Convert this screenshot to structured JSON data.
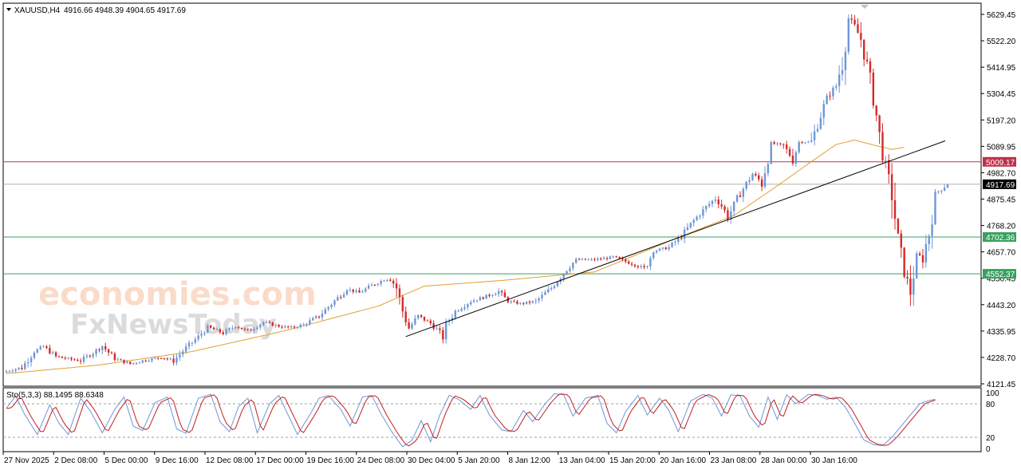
{
  "header": {
    "symbol": "XAUUSD,H4",
    "ohlc": "4916.66 4948.39 4904.65 4917.69"
  },
  "indicator": {
    "label": "Sto(5,3,3) 88.1495 88.6348",
    "levels": [
      "100",
      "80",
      "20",
      "0"
    ]
  },
  "watermark": {
    "line1": "economies.com",
    "line2": "FxNewsToday"
  },
  "colors": {
    "bull": "#6f96d6",
    "bear": "#d42a2a",
    "ma": "#e0a030",
    "resistance": "#c0304a",
    "support": "#3aa060",
    "price_line": "#b0b0b0",
    "trendline": "#000000",
    "stoch_main": "#6f96d6",
    "stoch_signal": "#c02020"
  },
  "chart_data": {
    "type": "candlestick",
    "y_range": [
      4100,
      5650
    ],
    "y_ticks": [
      "5629.45",
      "5522.20",
      "5414.95",
      "5304.45",
      "5197.20",
      "5089.95",
      "4982.70",
      "4875.45",
      "4768.20",
      "4657.70",
      "4550.45",
      "4443.20",
      "4335.95",
      "4228.70",
      "4121.45"
    ],
    "x_ticks": [
      "27 Nov 2025",
      "2 Dec 08:00",
      "5 Dec 00:00",
      "9 Dec 16:00",
      "12 Dec 08:00",
      "17 Dec 00:00",
      "19 Dec 16:00",
      "24 Dec 08:00",
      "30 Dec 04:00",
      "5 Jan 20:00",
      "8 Jan 12:00",
      "13 Jan 04:00",
      "15 Jan 20:00",
      "20 Jan 16:00",
      "23 Jan 08:00",
      "28 Jan 00:00",
      "30 Jan 16:00"
    ],
    "levels": [
      {
        "label": "5009.17",
        "value": 5009.17,
        "kind": "resistance"
      },
      {
        "label": "4917.69",
        "value": 4917.69,
        "kind": "current"
      },
      {
        "label": "4702.36",
        "value": 4702.36,
        "kind": "support"
      },
      {
        "label": "4552.37",
        "value": 4552.37,
        "kind": "support"
      }
    ],
    "close_path": [
      [
        0,
        4155
      ],
      [
        5,
        4170
      ],
      [
        9,
        4235
      ],
      [
        12,
        4255
      ],
      [
        16,
        4215
      ],
      [
        20,
        4205
      ],
      [
        24,
        4198
      ],
      [
        28,
        4230
      ],
      [
        31,
        4258
      ],
      [
        35,
        4205
      ],
      [
        40,
        4185
      ],
      [
        45,
        4200
      ],
      [
        50,
        4212
      ],
      [
        54,
        4198
      ],
      [
        58,
        4250
      ],
      [
        62,
        4295
      ],
      [
        65,
        4335
      ],
      [
        70,
        4310
      ],
      [
        74,
        4340
      ],
      [
        78,
        4318
      ],
      [
        83,
        4355
      ],
      [
        88,
        4338
      ],
      [
        92,
        4332
      ],
      [
        96,
        4345
      ],
      [
        101,
        4380
      ],
      [
        105,
        4430
      ],
      [
        110,
        4490
      ],
      [
        114,
        4475
      ],
      [
        118,
        4505
      ],
      [
        122,
        4528
      ],
      [
        124,
        4535
      ],
      [
        126,
        4495
      ],
      [
        128,
        4400
      ],
      [
        130,
        4330
      ],
      [
        133,
        4380
      ],
      [
        137,
        4350
      ],
      [
        139,
        4325
      ],
      [
        141,
        4300
      ],
      [
        142,
        4345
      ],
      [
        145,
        4400
      ],
      [
        150,
        4440
      ],
      [
        155,
        4460
      ],
      [
        159,
        4480
      ],
      [
        162,
        4440
      ],
      [
        166,
        4430
      ],
      [
        171,
        4440
      ],
      [
        176,
        4495
      ],
      [
        181,
        4570
      ],
      [
        184,
        4610
      ],
      [
        190,
        4610
      ],
      [
        196,
        4620
      ],
      [
        201,
        4598
      ],
      [
        204,
        4585
      ],
      [
        206,
        4570
      ],
      [
        209,
        4645
      ],
      [
        214,
        4660
      ],
      [
        218,
        4705
      ],
      [
        222,
        4770
      ],
      [
        226,
        4825
      ],
      [
        229,
        4860
      ],
      [
        231,
        4830
      ],
      [
        233,
        4785
      ],
      [
        237,
        4880
      ],
      [
        241,
        4960
      ],
      [
        244,
        4925
      ],
      [
        247,
        5085
      ],
      [
        251,
        5075
      ],
      [
        254,
        5020
      ],
      [
        256,
        5090
      ],
      [
        260,
        5090
      ],
      [
        262,
        5165
      ],
      [
        265,
        5270
      ],
      [
        268,
        5320
      ],
      [
        270,
        5420
      ],
      [
        272,
        5595
      ],
      [
        274,
        5560
      ],
      [
        276,
        5510
      ],
      [
        278,
        5400
      ],
      [
        280,
        5280
      ],
      [
        282,
        5115
      ],
      [
        284,
        4985
      ],
      [
        286,
        4880
      ],
      [
        288,
        4690
      ],
      [
        290,
        4560
      ],
      [
        292,
        4480
      ],
      [
        294,
        4630
      ],
      [
        296,
        4620
      ],
      [
        298,
        4720
      ],
      [
        300,
        4880
      ],
      [
        304,
        4917.69
      ]
    ],
    "stoch_path": [
      [
        0,
        72
      ],
      [
        3,
        94
      ],
      [
        6,
        60
      ],
      [
        10,
        25
      ],
      [
        14,
        78
      ],
      [
        17,
        45
      ],
      [
        20,
        25
      ],
      [
        24,
        90
      ],
      [
        27,
        68
      ],
      [
        31,
        28
      ],
      [
        35,
        70
      ],
      [
        38,
        92
      ],
      [
        41,
        40
      ],
      [
        44,
        32
      ],
      [
        48,
        82
      ],
      [
        52,
        92
      ],
      [
        55,
        35
      ],
      [
        58,
        27
      ],
      [
        62,
        90
      ],
      [
        66,
        97
      ],
      [
        69,
        48
      ],
      [
        72,
        30
      ],
      [
        75,
        75
      ],
      [
        78,
        90
      ],
      [
        81,
        28
      ],
      [
        85,
        80
      ],
      [
        88,
        95
      ],
      [
        91,
        60
      ],
      [
        94,
        25
      ],
      [
        98,
        60
      ],
      [
        101,
        90
      ],
      [
        104,
        95
      ],
      [
        108,
        70
      ],
      [
        111,
        40
      ],
      [
        115,
        92
      ],
      [
        118,
        95
      ],
      [
        121,
        62
      ],
      [
        125,
        25
      ],
      [
        128,
        3
      ],
      [
        131,
        15
      ],
      [
        134,
        50
      ],
      [
        137,
        12
      ],
      [
        140,
        60
      ],
      [
        143,
        95
      ],
      [
        146,
        88
      ],
      [
        150,
        70
      ],
      [
        153,
        95
      ],
      [
        156,
        60
      ],
      [
        160,
        33
      ],
      [
        163,
        30
      ],
      [
        167,
        68
      ],
      [
        170,
        48
      ],
      [
        174,
        80
      ],
      [
        177,
        98
      ],
      [
        180,
        96
      ],
      [
        183,
        58
      ],
      [
        187,
        90
      ],
      [
        191,
        95
      ],
      [
        194,
        45
      ],
      [
        197,
        28
      ],
      [
        200,
        66
      ],
      [
        204,
        95
      ],
      [
        207,
        60
      ],
      [
        211,
        90
      ],
      [
        214,
        68
      ],
      [
        217,
        30
      ],
      [
        221,
        85
      ],
      [
        225,
        97
      ],
      [
        228,
        90
      ],
      [
        231,
        58
      ],
      [
        234,
        96
      ],
      [
        237,
        94
      ],
      [
        240,
        58
      ],
      [
        243,
        38
      ],
      [
        246,
        92
      ],
      [
        249,
        52
      ],
      [
        252,
        96
      ],
      [
        255,
        80
      ],
      [
        259,
        97
      ],
      [
        262,
        95
      ],
      [
        265,
        88
      ],
      [
        268,
        92
      ],
      [
        271,
        74
      ],
      [
        274,
        45
      ],
      [
        277,
        15
      ],
      [
        280,
        7
      ],
      [
        283,
        5
      ],
      [
        286,
        20
      ],
      [
        289,
        40
      ],
      [
        292,
        60
      ],
      [
        295,
        80
      ],
      [
        298,
        86
      ],
      [
        300,
        88
      ]
    ],
    "ma_points": [
      [
        0,
        4145
      ],
      [
        30,
        4180
      ],
      [
        60,
        4235
      ],
      [
        90,
        4320
      ],
      [
        120,
        4420
      ],
      [
        135,
        4502
      ],
      [
        160,
        4525
      ],
      [
        190,
        4560
      ],
      [
        215,
        4690
      ],
      [
        235,
        4790
      ],
      [
        250,
        4920
      ],
      [
        260,
        5010
      ],
      [
        268,
        5080
      ],
      [
        274,
        5098
      ],
      [
        280,
        5078
      ],
      [
        286,
        5060
      ],
      [
        290,
        5068
      ]
    ],
    "trendline": [
      [
        129,
        4296
      ],
      [
        300,
        5080
      ]
    ],
    "candle_count": 305
  }
}
